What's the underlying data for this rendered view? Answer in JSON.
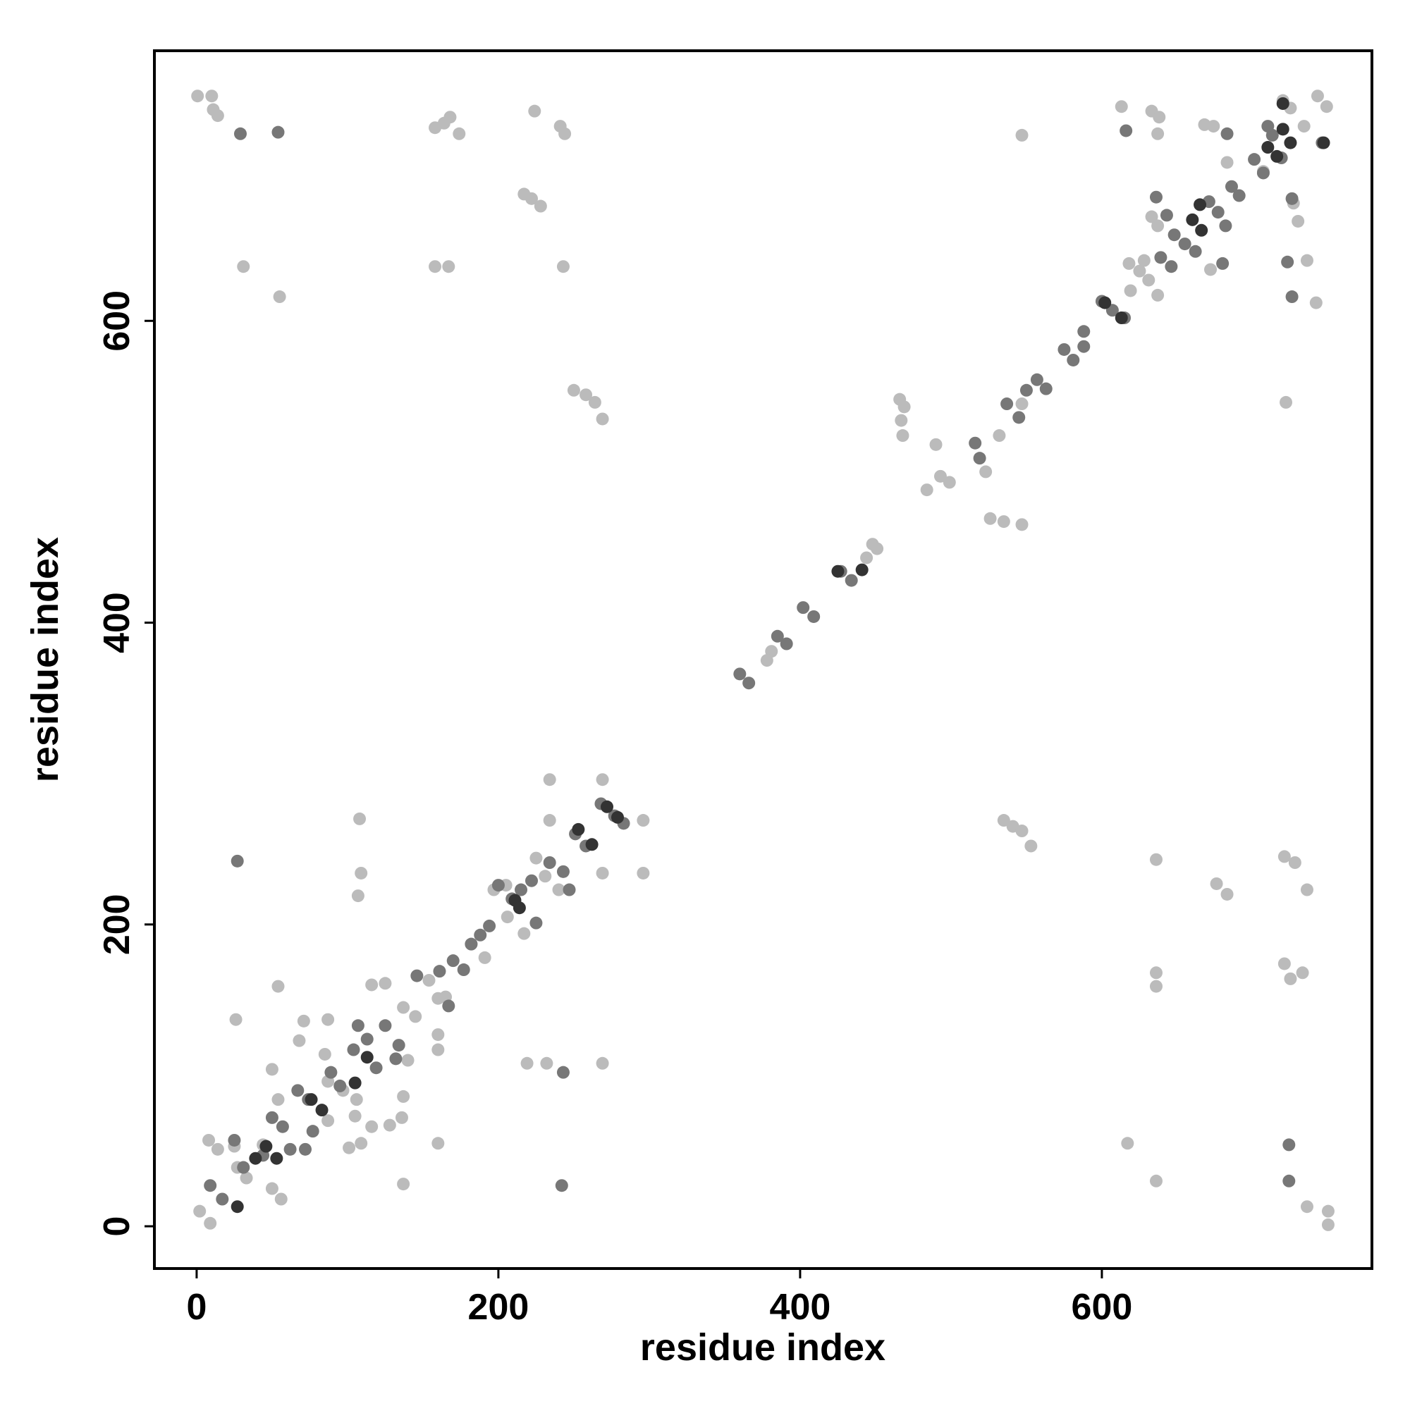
{
  "chart_data": {
    "type": "scatter",
    "x_label": "residue index",
    "y_label": "residue index",
    "xlim": [
      -28,
      779
    ],
    "ylim": [
      -28,
      779
    ],
    "xticks": [
      0,
      200,
      400,
      600
    ],
    "yticks": [
      0,
      200,
      400,
      600
    ],
    "series": [
      {
        "color": "#bbbbbb",
        "x": [
          0.6,
          10,
          11,
          14,
          224,
          241,
          244,
          158,
          164,
          168,
          174,
          31,
          55,
          158,
          167,
          243,
          217,
          222,
          228,
          250,
          258,
          264,
          269,
          466,
          469,
          467,
          468,
          490,
          484,
          493,
          499,
          526,
          535,
          547,
          523,
          532,
          547,
          547,
          381,
          378,
          448,
          451,
          444,
          613,
          633,
          638,
          637,
          668,
          674,
          633,
          637,
          618,
          625,
          631,
          637,
          619,
          628,
          672,
          727,
          730,
          736,
          742,
          722,
          743,
          749,
          725,
          734,
          707,
          683,
          720,
          535,
          541,
          547,
          553,
          636,
          676,
          683,
          721,
          728,
          736,
          721,
          725,
          733,
          636,
          636,
          617,
          636,
          736,
          750,
          750,
          2,
          9,
          8,
          14,
          25,
          27,
          33,
          44,
          50,
          56,
          50,
          54,
          68,
          71,
          85,
          87,
          87,
          97,
          105,
          109,
          101,
          106,
          116,
          125,
          87,
          26,
          54,
          108,
          109,
          107,
          116,
          128,
          136,
          137,
          137,
          145,
          140,
          137,
          160,
          160,
          160,
          154,
          160,
          165,
          219,
          232,
          269,
          182,
          191,
          197,
          206,
          217,
          225,
          231,
          240,
          234,
          234,
          269,
          269,
          296,
          296,
          205
        ],
        "values": [
          749,
          749,
          740,
          736,
          739,
          729,
          724,
          728,
          731,
          735,
          724,
          636,
          616,
          636,
          636,
          636,
          684,
          681,
          676,
          554,
          551,
          546,
          535,
          548,
          543,
          534,
          524,
          518,
          488,
          497,
          493,
          469,
          467,
          465,
          500,
          524,
          545,
          723,
          381,
          375,
          452,
          449,
          443,
          742,
          739,
          735,
          724,
          730,
          729,
          669,
          663,
          638,
          633,
          627,
          617,
          620,
          640,
          634,
          678,
          666,
          640,
          612,
          546,
          749,
          742,
          741,
          729,
          699,
          705,
          746,
          269,
          265,
          262,
          252,
          243,
          227,
          220,
          245,
          241,
          223,
          174,
          164,
          168,
          168,
          159,
          55,
          30,
          13,
          10,
          1,
          10,
          2,
          57,
          51,
          53,
          39,
          32,
          54,
          25,
          18,
          104,
          84,
          123,
          136,
          114,
          96,
          70,
          90,
          73,
          55,
          52,
          84,
          160,
          161,
          137,
          137,
          159,
          270,
          234,
          219,
          66,
          67,
          72,
          86,
          145,
          139,
          110,
          28,
          55,
          127,
          117,
          163,
          151,
          152,
          108,
          108,
          108,
          187,
          178,
          223,
          205,
          194,
          244,
          232,
          223,
          269,
          296,
          296,
          234,
          269,
          234,
          226
        ]
      },
      {
        "color": "#777777",
        "x": [
          29,
          54,
          27,
          242,
          243,
          360,
          366,
          402,
          409,
          385,
          391,
          427,
          434,
          516,
          519,
          537,
          545,
          557,
          563,
          550,
          575,
          581,
          588,
          588,
          600,
          607,
          615,
          639,
          646,
          648,
          655,
          636,
          643,
          662,
          680,
          671,
          677,
          682,
          686,
          691,
          701,
          707,
          713,
          719,
          726,
          723,
          726,
          724,
          724,
          616,
          683,
          746,
          710,
          9,
          17,
          25,
          31,
          44,
          50,
          57,
          62,
          72,
          67,
          74,
          77,
          89,
          95,
          104,
          107,
          113,
          119,
          125,
          132,
          134,
          146,
          161,
          167,
          170,
          177,
          182,
          188,
          194,
          200,
          209,
          215,
          225,
          222,
          234,
          243,
          247,
          251,
          258,
          268,
          277,
          283
        ],
        "values": [
          724,
          725,
          242,
          27,
          102,
          366,
          360,
          410,
          404,
          391,
          386,
          434,
          428,
          519,
          509,
          545,
          536,
          561,
          555,
          554,
          581,
          574,
          583,
          593,
          613,
          607,
          602,
          642,
          636,
          657,
          651,
          682,
          670,
          646,
          638,
          679,
          672,
          663,
          689,
          683,
          707,
          698,
          723,
          708,
          681,
          639,
          616,
          54,
          30,
          726,
          724,
          718,
          729,
          27,
          18,
          57,
          39,
          47,
          72,
          66,
          51,
          51,
          90,
          84,
          63,
          102,
          93,
          117,
          133,
          124,
          105,
          133,
          111,
          120,
          166,
          169,
          146,
          176,
          170,
          187,
          193,
          199,
          226,
          217,
          223,
          201,
          229,
          241,
          235,
          223,
          260,
          252,
          280,
          272,
          267
        ]
      },
      {
        "color": "#333333",
        "x": [
          27,
          39,
          46,
          53,
          76,
          83,
          105,
          113,
          211,
          214,
          253,
          262,
          272,
          279,
          425,
          441,
          602,
          613,
          660,
          666,
          710,
          716,
          720,
          725,
          720,
          747,
          665
        ],
        "values": [
          13,
          45,
          53,
          45,
          84,
          77,
          95,
          112,
          216,
          211,
          263,
          253,
          278,
          271,
          434,
          435,
          612,
          602,
          667,
          660,
          715,
          709,
          727,
          718,
          744,
          718,
          677
        ]
      }
    ]
  }
}
